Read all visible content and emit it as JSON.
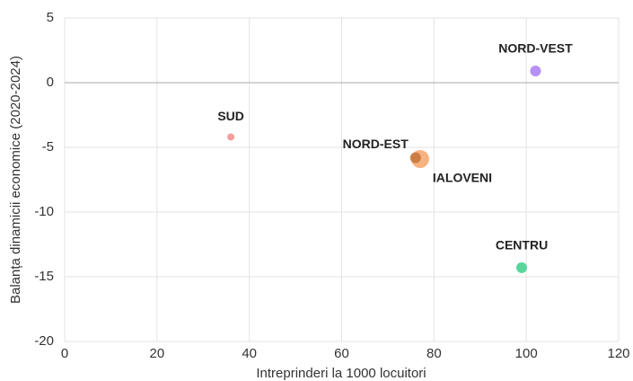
{
  "chart_data": {
    "type": "bubble",
    "xlabel": "Intreprinderi la 1000 locuitori",
    "ylabel": "Balanța dinamicii economice (2020-2024)",
    "labels": [
      "SUD",
      "NORD-EST",
      "IALOVENI",
      "NORD-VEST",
      "CENTRU"
    ],
    "x": [
      36,
      76,
      77,
      102,
      99
    ],
    "values": [
      -4.2,
      -5.8,
      -5.9,
      0.9,
      -14.3
    ],
    "sizes": [
      16,
      36,
      100,
      36,
      36
    ],
    "colors": [
      "#f28c8c",
      "#c4743c",
      "#f7a36a",
      "#a97cf2",
      "#3ecf8a"
    ],
    "xlim": [
      0,
      120
    ],
    "xticks": [
      0,
      20,
      40,
      60,
      80,
      100,
      120
    ],
    "ylim": [
      -20,
      5
    ],
    "yticks": [
      5,
      0,
      -5,
      -10,
      -15,
      -20
    ],
    "grid": true
  }
}
